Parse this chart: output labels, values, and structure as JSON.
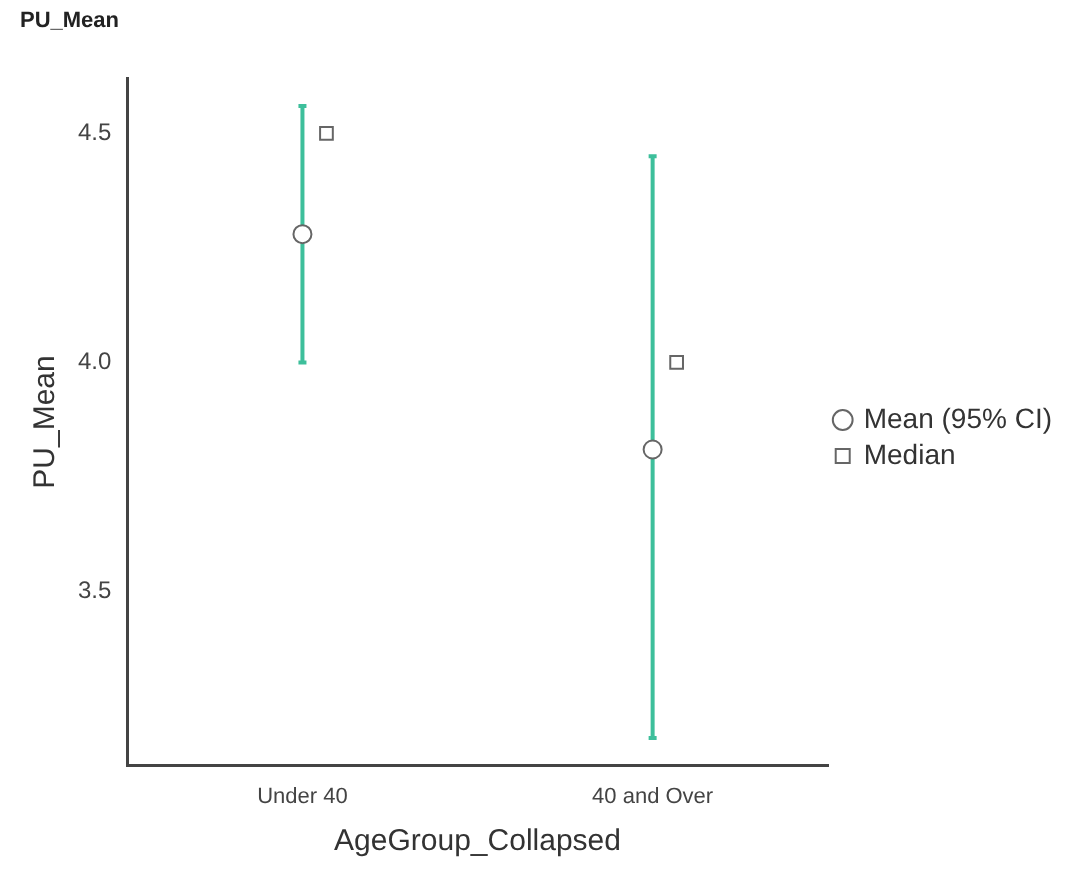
{
  "chart_data": {
    "type": "scatter",
    "title": "PU_Mean",
    "xlabel": "AgeGroup_Collapsed",
    "ylabel": "PU_Mean",
    "categories": [
      "Under 40",
      "40 and Over"
    ],
    "series": [
      {
        "name": "Mean (95% CI)",
        "color": "#666666",
        "values": [
          4.28,
          3.81
        ],
        "errors": [
          [
            4.0,
            4.56
          ],
          [
            3.18,
            4.45
          ]
        ],
        "marker": "circle"
      },
      {
        "name": "Median",
        "color": "#666666",
        "values": [
          4.5,
          4.0
        ],
        "marker": "square"
      }
    ],
    "ylim": [
      3.12,
      4.62
    ],
    "yticks": [
      3.5,
      {
        "value": 4,
        "label": "4.0"
      },
      4.5
    ],
    "legend": "right",
    "grid": false
  }
}
